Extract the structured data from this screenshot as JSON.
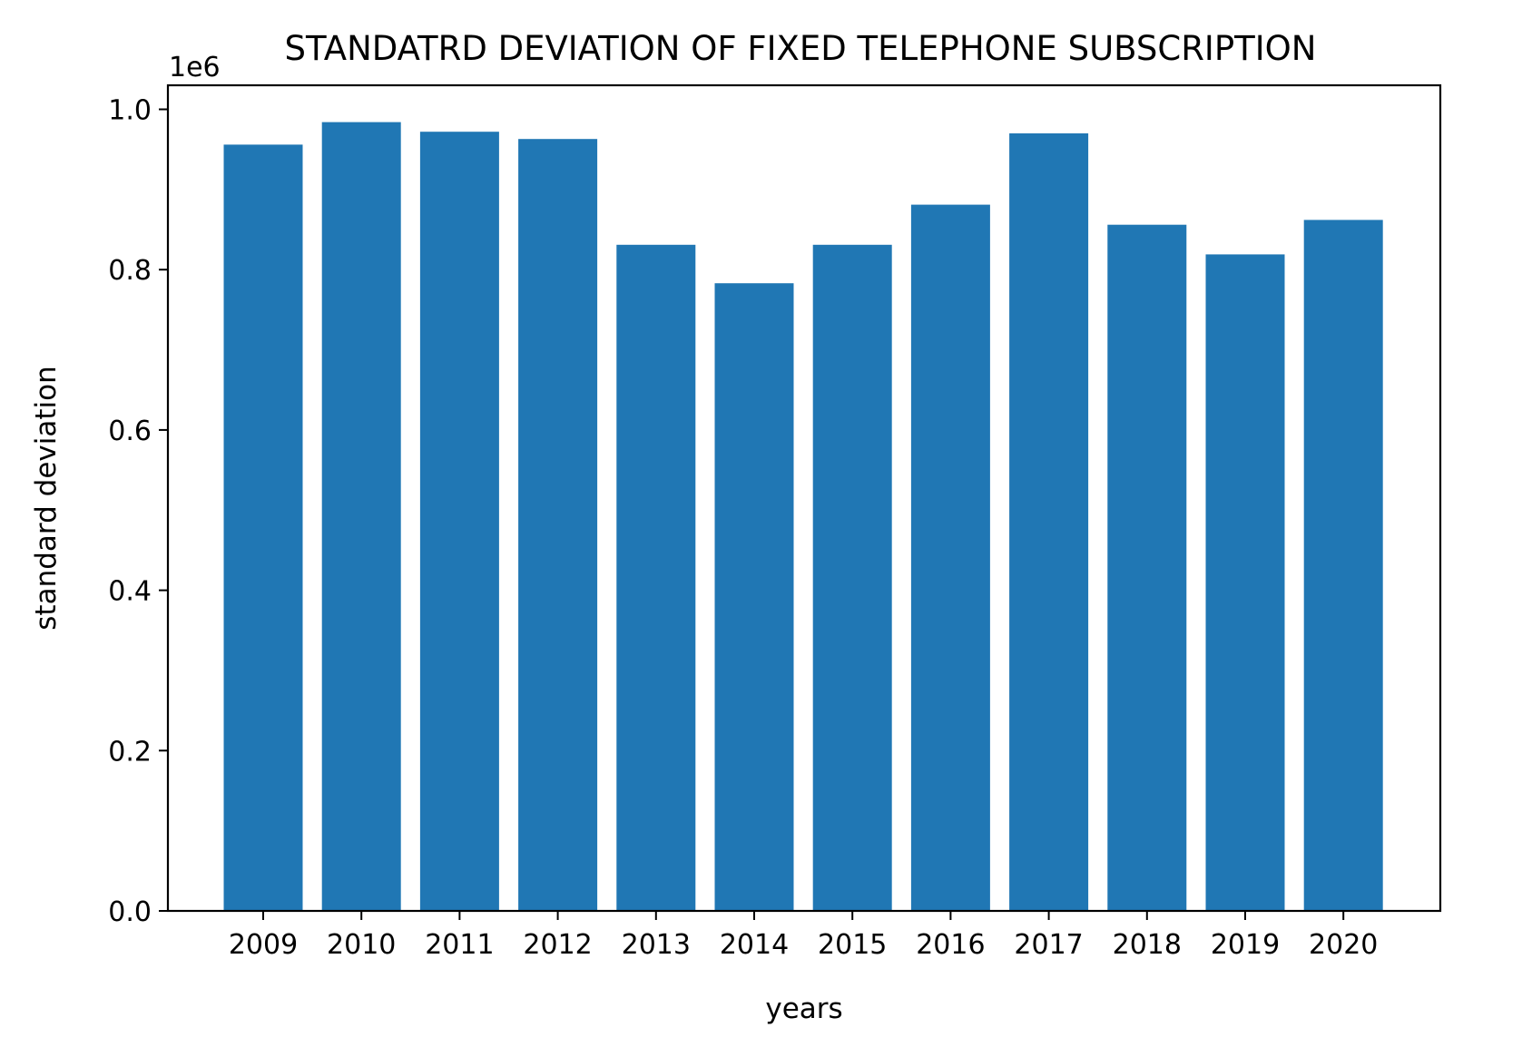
{
  "chart_data": {
    "type": "bar",
    "title": "STANDATRD DEVIATION OF FIXED TELEPHONE SUBSCRIPTION",
    "xlabel": "years",
    "ylabel": "standard deviation",
    "y_offset_label": "1e6",
    "categories": [
      "2009",
      "2010",
      "2011",
      "2012",
      "2013",
      "2014",
      "2015",
      "2016",
      "2017",
      "2018",
      "2019",
      "2020"
    ],
    "values": [
      956000,
      984000,
      972000,
      963000,
      831000,
      783000,
      831000,
      881000,
      970000,
      856000,
      819000,
      862000
    ],
    "ylim": [
      0,
      1030000
    ],
    "yticks": [
      0,
      200000,
      400000,
      600000,
      800000,
      1000000
    ],
    "ytick_labels": [
      "0.0",
      "0.2",
      "0.4",
      "0.6",
      "0.8",
      "1.0"
    ],
    "bar_color": "#2077b4",
    "grid": false,
    "legend": "none"
  }
}
